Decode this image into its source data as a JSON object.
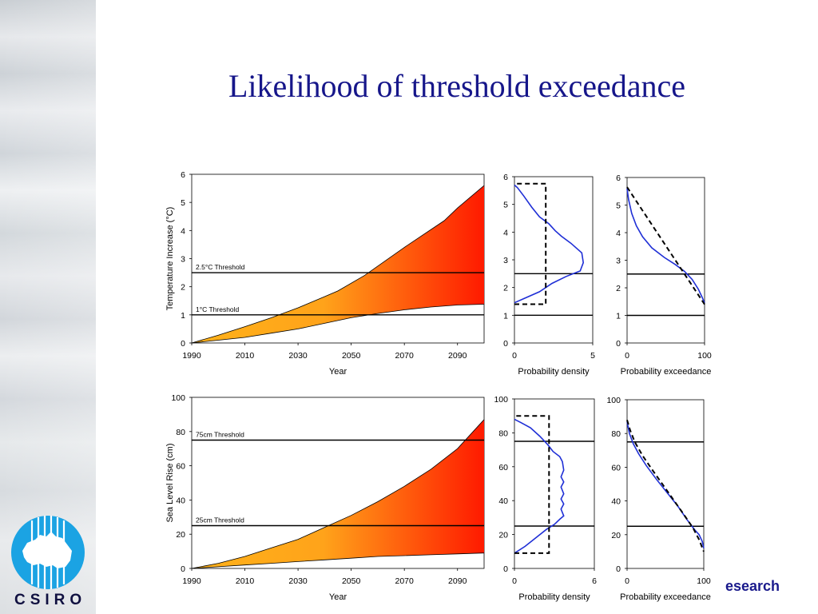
{
  "slide": {
    "title": "Likelihood of threshold exceedance",
    "footer_text": "esearch",
    "logo_text": "CSIRO",
    "title_color": "#16168a"
  },
  "chart_data": [
    {
      "id": "temp_projection",
      "type": "area",
      "ylabel": "Temperature Increase (°C)",
      "xlabel": "Year",
      "xlim": [
        1990,
        2100
      ],
      "ylim": [
        0,
        6
      ],
      "xticks": [
        1990,
        2010,
        2030,
        2050,
        2070,
        2090
      ],
      "yticks": [
        0,
        1,
        2,
        3,
        4,
        5,
        6
      ],
      "upper": [
        [
          1990,
          0
        ],
        [
          2000,
          0.28
        ],
        [
          2010,
          0.58
        ],
        [
          2020,
          0.9
        ],
        [
          2030,
          1.25
        ],
        [
          2040,
          1.65
        ],
        [
          2045,
          1.85
        ],
        [
          2055,
          2.4
        ],
        [
          2070,
          3.4
        ],
        [
          2085,
          4.35
        ],
        [
          2090,
          4.8
        ],
        [
          2095,
          5.2
        ],
        [
          2100,
          5.6
        ]
      ],
      "lower": [
        [
          1990,
          0
        ],
        [
          2000,
          0.1
        ],
        [
          2010,
          0.2
        ],
        [
          2020,
          0.35
        ],
        [
          2030,
          0.5
        ],
        [
          2040,
          0.7
        ],
        [
          2050,
          0.9
        ],
        [
          2060,
          1.05
        ],
        [
          2070,
          1.18
        ],
        [
          2080,
          1.28
        ],
        [
          2090,
          1.35
        ],
        [
          2100,
          1.38
        ]
      ],
      "thresholds": [
        {
          "value": 2.5,
          "label": "2.5°C Threshold"
        },
        {
          "value": 1,
          "label": "1°C Threshold"
        }
      ]
    },
    {
      "id": "temp_density",
      "type": "line",
      "xlabel": "Probability density",
      "xlim": [
        0,
        5
      ],
      "ylim": [
        0,
        6
      ],
      "xticks": [
        0,
        5
      ],
      "yticks": [
        0,
        1,
        2,
        3,
        4,
        5,
        6
      ],
      "series": [
        {
          "style": "solid",
          "points": [
            [
              0,
              1.45
            ],
            [
              0.6,
              1.6
            ],
            [
              1.6,
              1.85
            ],
            [
              2.4,
              2.15
            ],
            [
              3.3,
              2.4
            ],
            [
              4.2,
              2.6
            ],
            [
              4.4,
              2.9
            ],
            [
              4.3,
              3.25
            ],
            [
              3.6,
              3.6
            ],
            [
              3.0,
              3.85
            ],
            [
              2.6,
              4.05
            ],
            [
              2.2,
              4.3
            ],
            [
              1.6,
              4.55
            ],
            [
              1.1,
              4.9
            ],
            [
              0.6,
              5.3
            ],
            [
              0.2,
              5.6
            ],
            [
              0,
              5.7
            ]
          ]
        },
        {
          "style": "dashed",
          "points": [
            [
              0,
              1.4
            ],
            [
              2.0,
              1.4
            ],
            [
              2.0,
              5.75
            ],
            [
              0,
              5.75
            ]
          ]
        }
      ],
      "thresholds": [
        {
          "value": 2.5
        },
        {
          "value": 1
        }
      ]
    },
    {
      "id": "temp_exceedance",
      "type": "line",
      "xlabel": "Probability exceedance",
      "xlim": [
        0,
        100
      ],
      "ylim": [
        0,
        6
      ],
      "xticks": [
        0,
        100
      ],
      "yticks": [
        0,
        1,
        2,
        3,
        4,
        5,
        6
      ],
      "series": [
        {
          "style": "solid",
          "points": [
            [
              0,
              5.6
            ],
            [
              2,
              5.2
            ],
            [
              6,
              4.7
            ],
            [
              12,
              4.25
            ],
            [
              20,
              3.85
            ],
            [
              32,
              3.45
            ],
            [
              48,
              3.1
            ],
            [
              62,
              2.85
            ],
            [
              74,
              2.6
            ],
            [
              84,
              2.3
            ],
            [
              92,
              1.95
            ],
            [
              97,
              1.65
            ],
            [
              100,
              1.45
            ]
          ]
        },
        {
          "style": "dashed",
          "points": [
            [
              0,
              5.65
            ],
            [
              100,
              1.4
            ]
          ]
        }
      ],
      "thresholds": [
        {
          "value": 2.5
        },
        {
          "value": 1
        }
      ]
    },
    {
      "id": "sea_projection",
      "type": "area",
      "ylabel": "Sea Level Rise (cm)",
      "xlabel": "Year",
      "xlim": [
        1990,
        2100
      ],
      "ylim": [
        0,
        100
      ],
      "xticks": [
        1990,
        2010,
        2030,
        2050,
        2070,
        2090
      ],
      "yticks": [
        0,
        20,
        40,
        60,
        80,
        100
      ],
      "upper": [
        [
          1990,
          0
        ],
        [
          2000,
          3
        ],
        [
          2010,
          7
        ],
        [
          2020,
          12
        ],
        [
          2030,
          17
        ],
        [
          2040,
          24
        ],
        [
          2050,
          31
        ],
        [
          2060,
          39
        ],
        [
          2070,
          48
        ],
        [
          2080,
          58
        ],
        [
          2090,
          70
        ],
        [
          2100,
          87
        ]
      ],
      "lower": [
        [
          1990,
          0
        ],
        [
          2000,
          1
        ],
        [
          2010,
          2
        ],
        [
          2020,
          3
        ],
        [
          2030,
          4
        ],
        [
          2040,
          5
        ],
        [
          2050,
          6
        ],
        [
          2060,
          7
        ],
        [
          2070,
          7.5
        ],
        [
          2080,
          8
        ],
        [
          2090,
          8.5
        ],
        [
          2100,
          9
        ]
      ],
      "thresholds": [
        {
          "value": 75,
          "label": "75cm Threshold"
        },
        {
          "value": 25,
          "label": "25cm Threshold"
        }
      ]
    },
    {
      "id": "sea_density",
      "type": "line",
      "xlabel": "Probability density",
      "xlim": [
        0,
        6
      ],
      "ylim": [
        0,
        100
      ],
      "xticks": [
        0,
        6
      ],
      "yticks": [
        0,
        20,
        40,
        60,
        80,
        100
      ],
      "series": [
        {
          "style": "solid",
          "points": [
            [
              0,
              9
            ],
            [
              0.8,
              13
            ],
            [
              1.6,
              18
            ],
            [
              2.4,
              23
            ],
            [
              3.0,
              26
            ],
            [
              3.4,
              29
            ],
            [
              3.7,
              31
            ],
            [
              3.5,
              35
            ],
            [
              3.7,
              38
            ],
            [
              3.5,
              41
            ],
            [
              3.7,
              44
            ],
            [
              3.5,
              48
            ],
            [
              3.7,
              51
            ],
            [
              3.5,
              54
            ],
            [
              3.7,
              58
            ],
            [
              3.6,
              63
            ],
            [
              3.4,
              66
            ],
            [
              2.9,
              69
            ],
            [
              2.5,
              73
            ],
            [
              1.9,
              78
            ],
            [
              1.2,
              83
            ],
            [
              0.5,
              86
            ],
            [
              0,
              88
            ]
          ]
        },
        {
          "style": "dashed",
          "points": [
            [
              0,
              9
            ],
            [
              2.6,
              9
            ],
            [
              2.6,
              90
            ],
            [
              0,
              90
            ]
          ]
        }
      ],
      "thresholds": [
        {
          "value": 75
        },
        {
          "value": 25
        }
      ]
    },
    {
      "id": "sea_exceedance",
      "type": "line",
      "xlabel": "Probability exceedance",
      "xlim": [
        0,
        100
      ],
      "ylim": [
        0,
        100
      ],
      "xticks": [
        0,
        100
      ],
      "yticks": [
        0,
        20,
        40,
        60,
        80,
        100
      ],
      "series": [
        {
          "style": "solid",
          "points": [
            [
              0,
              87
            ],
            [
              3,
              80
            ],
            [
              8,
              74
            ],
            [
              15,
              68
            ],
            [
              25,
              61
            ],
            [
              38,
              53
            ],
            [
              52,
              45
            ],
            [
              66,
              37
            ],
            [
              78,
              29
            ],
            [
              88,
              23
            ],
            [
              94,
              20
            ],
            [
              98,
              16
            ],
            [
              100,
              12
            ]
          ]
        },
        {
          "style": "dashed",
          "points": [
            [
              0,
              88
            ],
            [
              4,
              82
            ],
            [
              10,
              75
            ],
            [
              20,
              67
            ],
            [
              32,
              59
            ],
            [
              46,
              50
            ],
            [
              60,
              41
            ],
            [
              74,
              32
            ],
            [
              86,
              24
            ],
            [
              94,
              17
            ],
            [
              100,
              10
            ]
          ]
        }
      ],
      "thresholds": [
        {
          "value": 75
        },
        {
          "value": 25
        }
      ]
    }
  ]
}
